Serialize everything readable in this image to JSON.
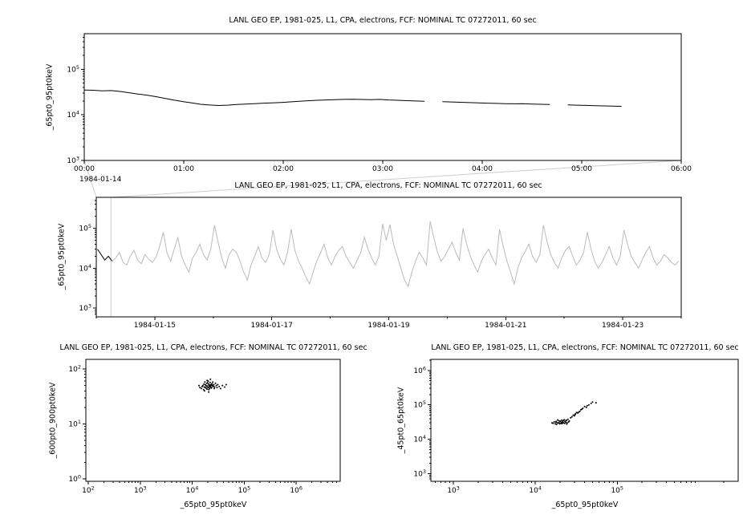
{
  "colors": {
    "background": "#ffffff",
    "foreground": "#000000"
  },
  "chart_data": [
    {
      "id": "top-timeseries",
      "type": "line",
      "title": "LANL GEO EP, 1981-025, L1, CPA, electrons, FCF: NOMINAL TC 07272011, 60 sec",
      "ylabel": "_65pt0_95pt0keV",
      "x_axis": {
        "scale": "linear",
        "min": 0,
        "max": 6,
        "tick_values": [
          0,
          1,
          2,
          3,
          4,
          5,
          6
        ],
        "tick_labels": [
          "00:00",
          "01:00",
          "02:00",
          "03:00",
          "04:00",
          "05:00",
          "06:00"
        ],
        "sublabel": "1984-01-14"
      },
      "y_axis": {
        "scale": "log",
        "min": 1000,
        "max": 600000,
        "tick_exponents": [
          3,
          4,
          5
        ]
      },
      "series": [
        {
          "name": "_65pt0_95pt0keV",
          "color": "#000000",
          "x_start": 0,
          "x_step": 0.09,
          "y": [
            35000,
            34500,
            33500,
            34000,
            32500,
            30500,
            28500,
            27000,
            25000,
            23000,
            21000,
            19500,
            18200,
            17000,
            16400,
            16000,
            16300,
            16800,
            17200,
            17600,
            18000,
            18300,
            18700,
            19200,
            19800,
            20300,
            20800,
            21200,
            21500,
            21800,
            22000,
            21700,
            21400,
            21800,
            21200,
            20800,
            20400,
            20100,
            19800,
            null,
            19400,
            19100,
            18800,
            18500,
            18200,
            18000,
            17800,
            17600,
            17400,
            17600,
            17200,
            17000,
            16800,
            null,
            16500,
            16300,
            16100,
            15900,
            15700,
            15500,
            15300
          ]
        }
      ]
    },
    {
      "id": "overview-timeseries",
      "type": "line",
      "title": "LANL GEO EP, 1981-025, L1, CPA, electrons, FCF: NOMINAL TC 07272011, 60 sec",
      "ylabel": "_65pt0_95pt0keV",
      "x_axis": {
        "scale": "linear",
        "min": 14,
        "max": 24,
        "tick_values": [
          15,
          17,
          19,
          21,
          23
        ],
        "tick_labels": [
          "1984-01-15",
          "1984-01-17",
          "1984-01-19",
          "1984-01-21",
          "1984-01-23"
        ],
        "minor_tick_values": [
          14,
          16,
          18,
          20,
          22,
          24
        ]
      },
      "y_axis": {
        "scale": "log",
        "min": 600,
        "max": 600000,
        "tick_exponents": [
          3,
          4,
          5
        ]
      },
      "zoom_region": {
        "x_min": 14.0,
        "x_max": 14.25,
        "link_color": "#cccccc"
      },
      "series": [
        {
          "name": "zoomed-interval",
          "color": "#000000",
          "x_start": 14.02,
          "x_step": 0.0625,
          "y": [
            30000,
            22000,
            16000,
            20000,
            15000
          ]
        },
        {
          "name": "overview",
          "color": "#bbbbbb",
          "x_start": 14.27,
          "x_step": 0.0625,
          "y": [
            15000,
            18000,
            25000,
            14000,
            12000,
            20000,
            28000,
            16000,
            13000,
            22000,
            17000,
            14000,
            19000,
            35000,
            80000,
            25000,
            15000,
            30000,
            60000,
            20000,
            12000,
            8000,
            18000,
            25000,
            40000,
            22000,
            16000,
            30000,
            120000,
            45000,
            18000,
            10000,
            22000,
            30000,
            25000,
            15000,
            8000,
            5000,
            12000,
            20000,
            35000,
            18000,
            14000,
            22000,
            90000,
            30000,
            17000,
            12000,
            25000,
            95000,
            28000,
            15000,
            10000,
            6000,
            4000,
            8000,
            15000,
            24000,
            40000,
            18000,
            12000,
            20000,
            28000,
            35000,
            20000,
            14000,
            10000,
            16000,
            24000,
            60000,
            30000,
            18000,
            12000,
            20000,
            130000,
            50000,
            125000,
            40000,
            20000,
            10000,
            5000,
            3500,
            8000,
            15000,
            25000,
            18000,
            12000,
            150000,
            60000,
            25000,
            15000,
            20000,
            30000,
            45000,
            25000,
            16000,
            100000,
            40000,
            20000,
            12000,
            8000,
            15000,
            22000,
            30000,
            18000,
            12000,
            95000,
            35000,
            15000,
            8000,
            4000,
            10000,
            18000,
            26000,
            40000,
            20000,
            14000,
            22000,
            120000,
            45000,
            22000,
            14000,
            10000,
            18000,
            28000,
            35000,
            20000,
            12000,
            16000,
            25000,
            80000,
            30000,
            15000,
            10000,
            14000,
            22000,
            35000,
            18000,
            12000,
            20000,
            90000,
            40000,
            20000,
            14000,
            10000,
            16000,
            25000,
            35000,
            18000,
            12000,
            15000,
            22000,
            18000,
            14000,
            12000,
            15000
          ]
        }
      ]
    },
    {
      "id": "scatter-600-900",
      "type": "scatter",
      "title": "LANL GEO EP, 1981-025, L1, CPA, electrons, FCF: NOMINAL TC 07272011, 60 sec",
      "xlabel": "_65pt0_95pt0keV",
      "ylabel": "_600pt0_900pt0keV",
      "x_axis": {
        "scale": "log",
        "min": 90,
        "max": 7000000,
        "tick_exponents": [
          2,
          3,
          4,
          5,
          6
        ]
      },
      "y_axis": {
        "scale": "log",
        "min": 0.9,
        "max": 150,
        "tick_exponents": [
          0,
          1,
          2
        ]
      },
      "points": [
        [
          15000,
          44
        ],
        [
          16000,
          50
        ],
        [
          17000,
          47
        ],
        [
          18000,
          52
        ],
        [
          18500,
          45
        ],
        [
          19000,
          55
        ],
        [
          19500,
          49
        ],
        [
          20000,
          46
        ],
        [
          20500,
          53
        ],
        [
          21000,
          50
        ],
        [
          21500,
          44
        ],
        [
          22000,
          57
        ],
        [
          22500,
          48
        ],
        [
          23000,
          51
        ],
        [
          23500,
          46
        ],
        [
          24000,
          54
        ],
        [
          25000,
          49
        ],
        [
          26000,
          52
        ],
        [
          27000,
          47
        ],
        [
          28000,
          55
        ],
        [
          16500,
          42
        ],
        [
          17500,
          58
        ],
        [
          18200,
          50
        ],
        [
          19200,
          43
        ],
        [
          20200,
          60
        ],
        [
          21200,
          47
        ],
        [
          22200,
          52
        ],
        [
          23200,
          45
        ],
        [
          24500,
          50
        ],
        [
          26500,
          44
        ],
        [
          15500,
          48
        ],
        [
          16800,
          53
        ],
        [
          17800,
          46
        ],
        [
          18800,
          49
        ],
        [
          19800,
          56
        ],
        [
          20800,
          42
        ],
        [
          21800,
          50
        ],
        [
          22800,
          47
        ],
        [
          23800,
          53
        ],
        [
          25500,
          48
        ],
        [
          29000,
          50
        ],
        [
          30000,
          46
        ],
        [
          31000,
          52
        ],
        [
          33000,
          48
        ],
        [
          35000,
          44
        ],
        [
          38000,
          50
        ],
        [
          42000,
          47
        ],
        [
          45000,
          52
        ],
        [
          14000,
          46
        ],
        [
          13500,
          50
        ],
        [
          19300,
          62
        ],
        [
          20700,
          38
        ],
        [
          22300,
          65
        ],
        [
          17200,
          40
        ],
        [
          24800,
          58
        ]
      ]
    },
    {
      "id": "scatter-45-65",
      "type": "scatter",
      "title": "LANL GEO EP, 1981-025, L1, CPA, electrons, FCF: NOMINAL TC 07272011, 60 sec",
      "xlabel": "_65pt0_95pt0keV",
      "ylabel": "_45pt0_65pt0keV",
      "x_axis": {
        "scale": "log",
        "min": 530,
        "max": 3000000,
        "tick_exponents": [
          3,
          4,
          5
        ]
      },
      "y_axis": {
        "scale": "log",
        "min": 600,
        "max": 2100000,
        "tick_exponents": [
          3,
          4,
          5,
          6
        ]
      },
      "points": [
        [
          16000,
          30000
        ],
        [
          17000,
          32000
        ],
        [
          17500,
          28000
        ],
        [
          18000,
          33000
        ],
        [
          18500,
          30000
        ],
        [
          19000,
          35000
        ],
        [
          19500,
          31000
        ],
        [
          20000,
          34000
        ],
        [
          20500,
          29000
        ],
        [
          21000,
          36000
        ],
        [
          21500,
          32000
        ],
        [
          22000,
          30000
        ],
        [
          22500,
          37000
        ],
        [
          23000,
          33000
        ],
        [
          23500,
          31000
        ],
        [
          24000,
          35000
        ],
        [
          24500,
          30000
        ],
        [
          25000,
          38000
        ],
        [
          26000,
          34000
        ],
        [
          18200,
          27000
        ],
        [
          19200,
          29500
        ],
        [
          20200,
          33500
        ],
        [
          21200,
          28500
        ],
        [
          22200,
          35500
        ],
        [
          23200,
          32500
        ],
        [
          17800,
          31500
        ],
        [
          18800,
          36500
        ],
        [
          19800,
          28000
        ],
        [
          20800,
          31000
        ],
        [
          21800,
          34000
        ],
        [
          22800,
          29000
        ],
        [
          23800,
          36000
        ],
        [
          16500,
          29000
        ],
        [
          25500,
          32000
        ],
        [
          24200,
          27500
        ],
        [
          27000,
          42000
        ],
        [
          28000,
          45000
        ],
        [
          29000,
          50000
        ],
        [
          30000,
          48000
        ],
        [
          31000,
          55000
        ],
        [
          32000,
          60000
        ],
        [
          33000,
          58000
        ],
        [
          35000,
          65000
        ],
        [
          36000,
          72000
        ],
        [
          38000,
          80000
        ],
        [
          40000,
          90000
        ],
        [
          42000,
          85000
        ],
        [
          45000,
          100000
        ],
        [
          48000,
          110000
        ],
        [
          50000,
          120000
        ],
        [
          55000,
          115000
        ],
        [
          30500,
          52000
        ],
        [
          34000,
          62000
        ],
        [
          37000,
          75000
        ],
        [
          43000,
          95000
        ]
      ]
    }
  ]
}
